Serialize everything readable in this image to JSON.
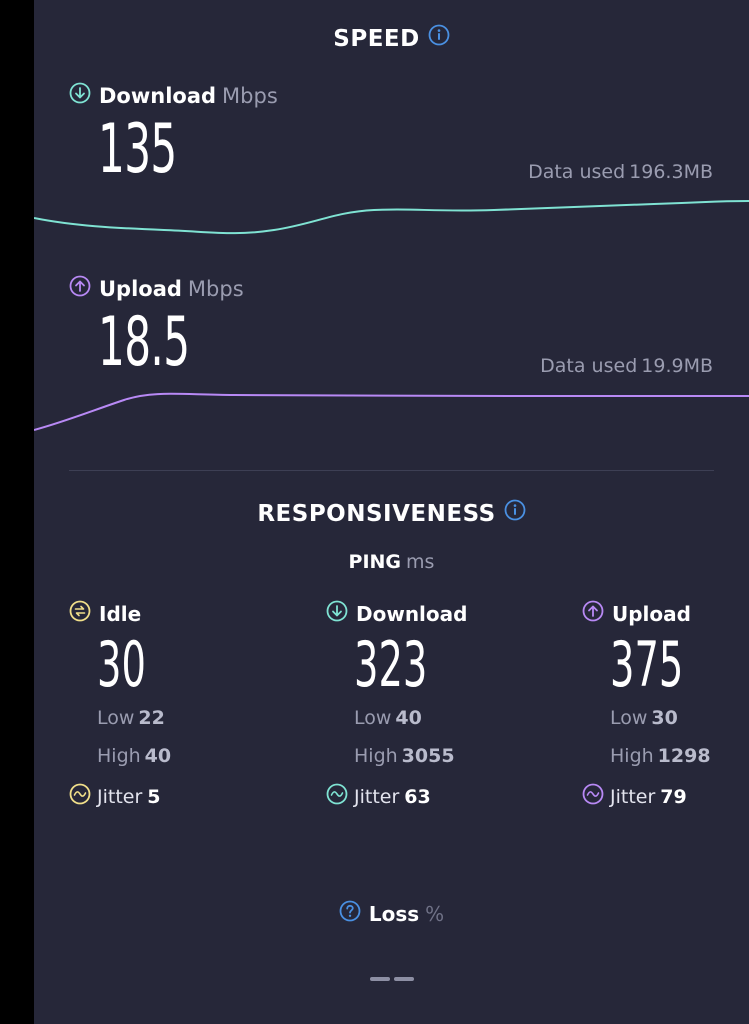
{
  "speed": {
    "title": "SPEED",
    "download": {
      "label": "Download",
      "unit": "Mbps",
      "value": "135",
      "data_used_label": "Data used",
      "data_used_value": "196.3MB",
      "color": "#7fe3d3"
    },
    "upload": {
      "label": "Upload",
      "unit": "Mbps",
      "value": "18.5",
      "data_used_label": "Data used",
      "data_used_value": "19.9MB",
      "color": "#b889f5"
    }
  },
  "responsiveness": {
    "title": "RESPONSIVENESS",
    "ping_label": "PING",
    "ping_unit": "ms",
    "idle": {
      "label": "Idle",
      "value": "30",
      "low_label": "Low",
      "low": "22",
      "high_label": "High",
      "high": "40",
      "jitter_label": "Jitter",
      "jitter": "5",
      "color": "#f1df8a"
    },
    "download": {
      "label": "Download",
      "value": "323",
      "low_label": "Low",
      "low": "40",
      "high_label": "High",
      "high": "3055",
      "jitter_label": "Jitter",
      "jitter": "63",
      "color": "#7fe3d3"
    },
    "upload": {
      "label": "Upload",
      "value": "375",
      "low_label": "Low",
      "low": "30",
      "high_label": "High",
      "high": "1298",
      "jitter_label": "Jitter",
      "jitter": "79",
      "color": "#b889f5"
    }
  },
  "loss": {
    "label": "Loss",
    "unit": "%"
  },
  "icons": {
    "info": "info-icon",
    "download": "arrow-down-circle-icon",
    "upload": "arrow-up-circle-icon",
    "idle": "idle-circle-icon",
    "jitter": "wave-circle-icon",
    "loss": "question-circle-icon"
  },
  "accent_blue": "#4a90e2"
}
